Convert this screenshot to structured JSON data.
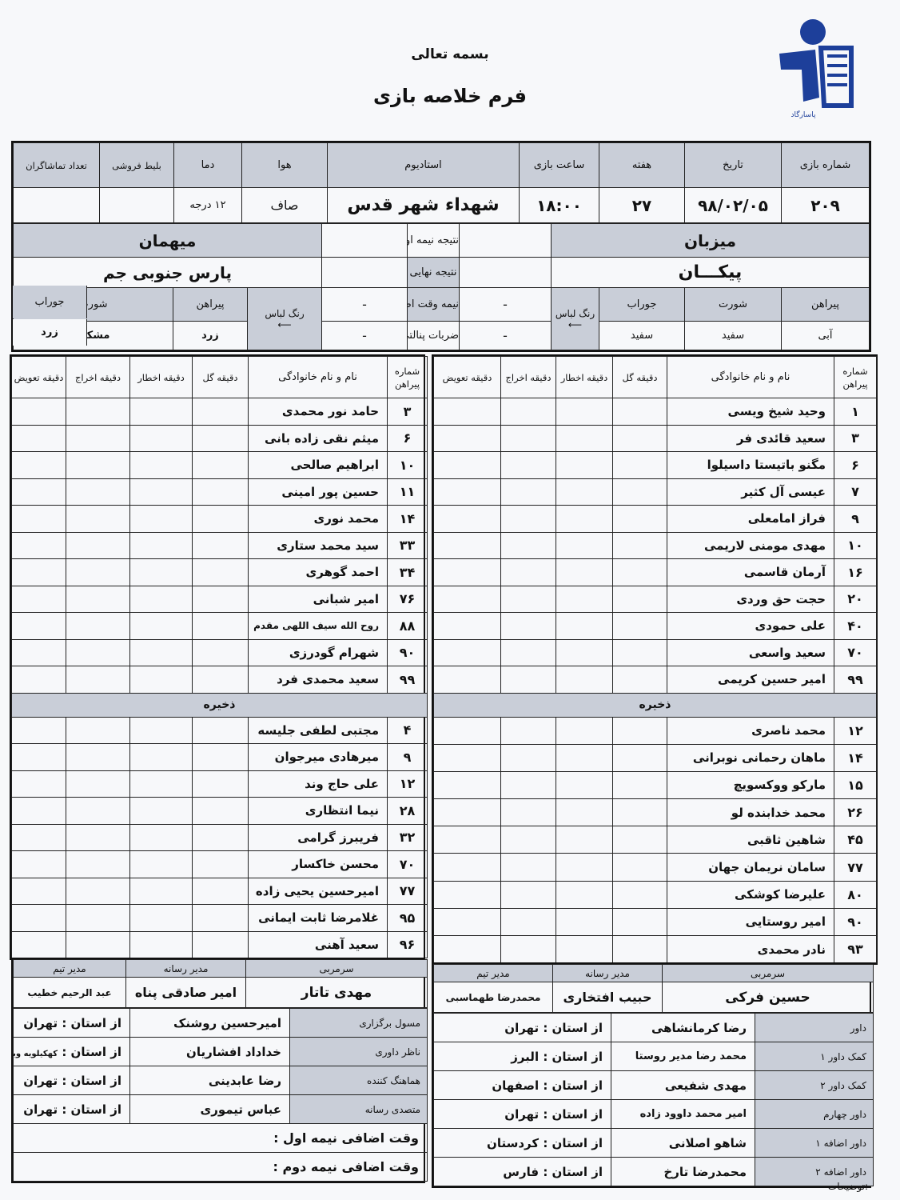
{
  "header": {
    "bismillah": "بسمه تعالی",
    "title": "فرم خلاصه بازی",
    "logo_text": "بانک پاسارگاد"
  },
  "info": {
    "labels": {
      "match_no": "شماره بازی",
      "date": "تاریخ",
      "week": "هفته",
      "time": "ساعت بازی",
      "stadium": "استادیوم",
      "weather": "هوا",
      "temperature": "دما",
      "tickets": "بلیط فروشی",
      "spectators": "تعداد تماشاگران"
    },
    "values": {
      "match_no": "۲۰۹",
      "date": "۹۸/۰۲/۰۵",
      "week": "۲۷",
      "time": "۱۸:۰۰",
      "stadium": "شهداء شهر قدس",
      "weather": "صاف",
      "temperature": "۱۲ درجه",
      "tickets": "",
      "spectators": ""
    }
  },
  "result": {
    "first_half": "نتیجه نیمه اول",
    "final": "نتیجه نهایی",
    "extra_time": "نیمه وقت اضافه",
    "penalties": "ضربات پنالتی",
    "dash": "-"
  },
  "host": {
    "label": "میزبان",
    "team": "پیکـــان",
    "kit_label": "رنگ لباس",
    "kit_headers": [
      "پیراهن",
      "شورت",
      "جوراب"
    ],
    "kit": [
      "آبی",
      "سفید",
      "سفید"
    ]
  },
  "guest": {
    "label": "میهمان",
    "team": "پارس جنوبی جم",
    "kit_label": "رنگ لباس",
    "kit_headers": [
      "پیراهن",
      "شورت",
      "جوراب"
    ],
    "kit": [
      "زرد",
      "مشکی",
      "زرد"
    ]
  },
  "table_headers": {
    "shirt": "شماره پیراهن",
    "name": "نام و نام خانوادگی",
    "goal": "دقیقه گل",
    "yellow": "دقیقه اخطار",
    "red": "دقیقه اخراج",
    "sub": "دقیقه تعویض",
    "reserves": "ذخیره"
  },
  "host_players": [
    [
      "۱",
      "وحید شیخ ویسی"
    ],
    [
      "۳",
      "سعید قائدی فر"
    ],
    [
      "۶",
      "مگنو باتیستا داسیلوا"
    ],
    [
      "۷",
      "عیسی آل کثیر"
    ],
    [
      "۹",
      "فراز امامعلی"
    ],
    [
      "۱۰",
      "مهدی مومنی لاریمی"
    ],
    [
      "۱۶",
      "آرمان قاسمی"
    ],
    [
      "۲۰",
      "حجت حق وردی"
    ],
    [
      "۴۰",
      "علی حمودی"
    ],
    [
      "۷۰",
      "سعید واسعی"
    ],
    [
      "۹۹",
      "امیر حسین کریمی"
    ]
  ],
  "host_reserves": [
    [
      "۱۲",
      "محمد ناصری"
    ],
    [
      "۱۴",
      "ماهان رحمانی نوبرانی"
    ],
    [
      "۱۵",
      "مارکو ووکسویچ"
    ],
    [
      "۲۶",
      "محمد خدابنده لو"
    ],
    [
      "۴۵",
      "شاهین ثاقبی"
    ],
    [
      "۷۷",
      "سامان نریمان جهان"
    ],
    [
      "۸۰",
      "علیرضا کوشکی"
    ],
    [
      "۹۰",
      "امیر روستایی"
    ],
    [
      "۹۳",
      "نادر محمدی"
    ]
  ],
  "guest_players": [
    [
      "۳",
      "حامد نور محمدی"
    ],
    [
      "۶",
      "میثم نقی زاده بانی"
    ],
    [
      "۱۰",
      "ابراهیم صالحی"
    ],
    [
      "۱۱",
      "حسین پور امینی"
    ],
    [
      "۱۴",
      "محمد نوری"
    ],
    [
      "۳۳",
      "سید محمد ستاری"
    ],
    [
      "۳۴",
      "احمد گوهری"
    ],
    [
      "۷۶",
      "امیر شبانی"
    ],
    [
      "۸۸",
      "روح الله سیف اللهی مقدم"
    ],
    [
      "۹۰",
      "شهرام گودرزی"
    ],
    [
      "۹۹",
      "سعید محمدی فرد"
    ]
  ],
  "guest_reserves": [
    [
      "۴",
      "مجتبی لطفی جلیسه"
    ],
    [
      "۹",
      "میرهادی میرجوان"
    ],
    [
      "۱۲",
      "علی حاج وند"
    ],
    [
      "۲۸",
      "نیما انتظاری"
    ],
    [
      "۳۲",
      "فریبرز گرامی"
    ],
    [
      "۷۰",
      "محسن خاکسار"
    ],
    [
      "۷۷",
      "امیرحسین یحیی زاده"
    ],
    [
      "۹۵",
      "غلامرضا ثابت ایمانی"
    ],
    [
      "۹۶",
      "سعید آهنی"
    ]
  ],
  "staff_labels": {
    "coach": "سرمربی",
    "media": "مدیر رسانه",
    "manager": "مدیر تیم"
  },
  "host_staff": {
    "coach": "حسین فرکی",
    "media": "حبیب افتخاری",
    "manager": "محمدرضا طهماسبی"
  },
  "guest_staff": {
    "coach": "مهدی تاتار",
    "media": "امیر صادقی پناه",
    "manager": "عبد الرحیم خطیب"
  },
  "province_label": "از استان :",
  "referees": [
    [
      "داور",
      "رضا کرمانشاهی",
      "تهران"
    ],
    [
      "کمک داور ۱",
      "محمد رضا مدیر روستا",
      "البرز"
    ],
    [
      "کمک داور ۲",
      "مهدی شفیعی",
      "اصفهان"
    ],
    [
      "داور چهارم",
      "امیر محمد داوود زاده",
      "تهران"
    ],
    [
      "داور اضافه ۱",
      "شاهو اصلانی",
      "کردستان"
    ],
    [
      "داور اضافه ۲",
      "محمدرضا تارخ",
      "فارس"
    ]
  ],
  "officials": [
    [
      "مسول برگزاری",
      "امیرحسین روشنک",
      "تهران"
    ],
    [
      "ناظر داوری",
      "خداداد افشاریان",
      "کهکیلویه وبویراحمد"
    ],
    [
      "هماهنگ کننده",
      "رضا عابدینی",
      "تهران"
    ],
    [
      "متصدی رسانه",
      "عباس تیموری",
      "تهران"
    ]
  ],
  "extra_time": {
    "first": "وقت اضافی نیمه اول :",
    "second": "وقت اضافی نیمه دوم :"
  },
  "notes_label": "توضیحات:"
}
